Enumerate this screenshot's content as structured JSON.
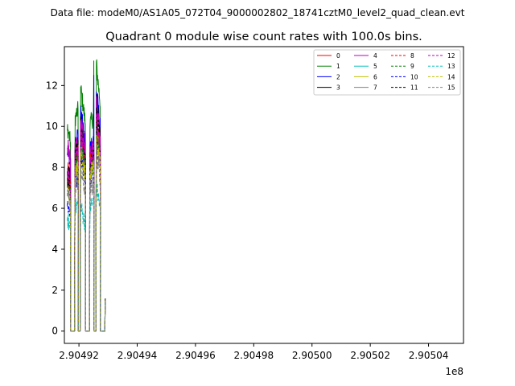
{
  "chart_data": {
    "type": "line",
    "suptitle": "Data file: modeM0/AS1A05_072T04_9000002802_18741cztM0_level2_quad_clean.evt",
    "title": "Quadrant 0 module wise count rates with 100.0s bins.",
    "xlabel": "",
    "ylabel": "",
    "x_offset_label": "1e8",
    "xlim": [
      2.904915,
      2.905052
    ],
    "ylim": [
      -0.6,
      13.9
    ],
    "x_ticks": [
      2.90492,
      2.90494,
      2.90496,
      2.90498,
      2.905,
      2.90502,
      2.90504
    ],
    "x_tick_labels": [
      "2.90492",
      "2.90494",
      "2.90496",
      "2.90498",
      "2.90500",
      "2.90502",
      "2.90504"
    ],
    "y_ticks": [
      0,
      2,
      4,
      6,
      8,
      10,
      12
    ],
    "y_tick_labels": [
      "0",
      "2",
      "4",
      "6",
      "8",
      "10",
      "12"
    ],
    "grid": false,
    "legend_position": "top-right",
    "legend_columns": 4,
    "x_start": 2.904916,
    "x_step": 1e-07,
    "segments": [
      {
        "start": 0,
        "length": 12
      },
      {
        "start": 26,
        "length": 12
      },
      {
        "start": 45,
        "length": 18
      },
      {
        "start": 77,
        "length": 15
      },
      {
        "start": 99,
        "length": 15
      }
    ],
    "n_points": 131,
    "series": [
      {
        "name": "0",
        "color": "#ff0000",
        "dashed": false,
        "levels": [
          7.8,
          9.1,
          9.3,
          8.3,
          10.0
        ]
      },
      {
        "name": "1",
        "color": "#008000",
        "dashed": false,
        "levels": [
          9.8,
          10.6,
          11.3,
          10.3,
          12.2
        ]
      },
      {
        "name": "2",
        "color": "#0000ff",
        "dashed": false,
        "levels": [
          8.6,
          9.5,
          10.2,
          9.2,
          11.0
        ]
      },
      {
        "name": "3",
        "color": "#000000",
        "dashed": false,
        "levels": [
          7.8,
          9.0,
          9.7,
          8.6,
          10.7
        ]
      },
      {
        "name": "4",
        "color": "#bf00bf",
        "dashed": false,
        "levels": [
          8.9,
          9.2,
          9.8,
          8.8,
          10.5
        ]
      },
      {
        "name": "5",
        "color": "#00bfbf",
        "dashed": false,
        "levels": [
          7.1,
          7.9,
          8.7,
          8.1,
          9.2
        ]
      },
      {
        "name": "6",
        "color": "#bfbf00",
        "dashed": false,
        "levels": [
          7.0,
          7.9,
          8.5,
          8.0,
          9.0
        ]
      },
      {
        "name": "7",
        "color": "#808080",
        "dashed": false,
        "levels": [
          7.3,
          8.3,
          9.0,
          8.3,
          9.6
        ]
      },
      {
        "name": "8",
        "color": "#ff0000",
        "dashed": true,
        "levels": [
          7.4,
          8.6,
          9.2,
          8.4,
          9.8
        ]
      },
      {
        "name": "9",
        "color": "#008000",
        "dashed": true,
        "levels": [
          7.0,
          8.2,
          8.7,
          8.0,
          9.3
        ]
      },
      {
        "name": "10",
        "color": "#0000ff",
        "dashed": true,
        "levels": [
          6.1,
          7.4,
          8.3,
          7.5,
          8.9
        ]
      },
      {
        "name": "11",
        "color": "#000000",
        "dashed": true,
        "levels": [
          7.5,
          8.7,
          9.4,
          8.5,
          10.2
        ]
      },
      {
        "name": "12",
        "color": "#bf00bf",
        "dashed": true,
        "levels": [
          7.6,
          8.8,
          9.3,
          8.5,
          10.0
        ]
      },
      {
        "name": "13",
        "color": "#00bfbf",
        "dashed": true,
        "levels": [
          5.4,
          6.1,
          5.8,
          6.2,
          6.6
        ]
      },
      {
        "name": "14",
        "color": "#bfbf00",
        "dashed": true,
        "levels": [
          6.8,
          7.8,
          8.4,
          7.9,
          8.8
        ]
      },
      {
        "name": "15",
        "color": "#808080",
        "dashed": true,
        "levels": [
          6.6,
          7.2,
          7.5,
          7.0,
          8.2
        ]
      }
    ]
  }
}
